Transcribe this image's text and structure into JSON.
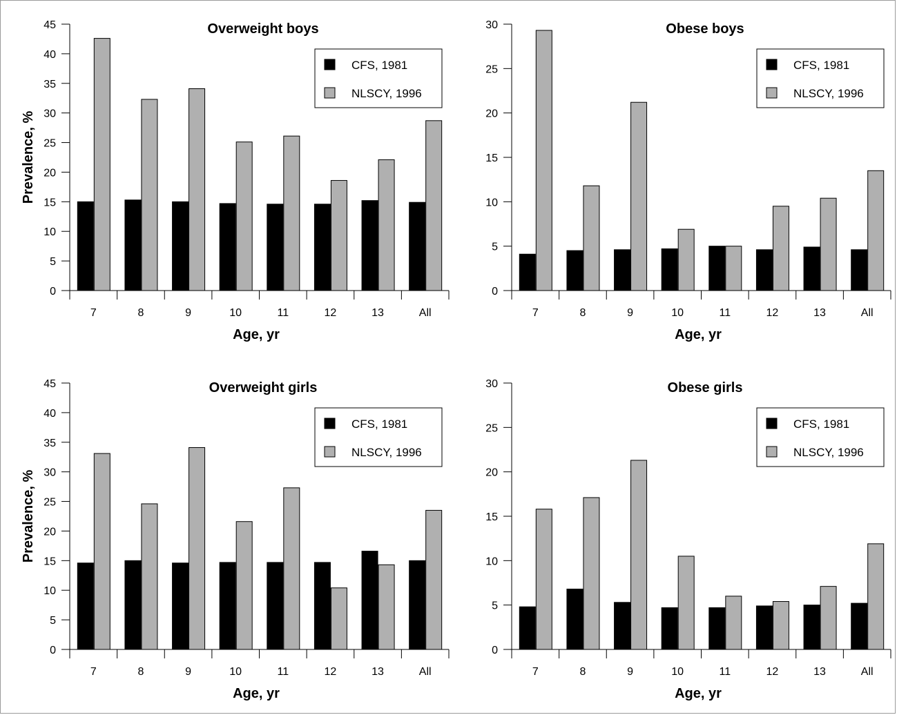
{
  "chart_data": [
    {
      "type": "bar",
      "title": "Overweight boys",
      "xlabel": "Age, yr",
      "ylabel": "Prevalence, %",
      "categories": [
        "7",
        "8",
        "9",
        "10",
        "11",
        "12",
        "13",
        "All"
      ],
      "ylim": [
        0,
        45
      ],
      "yticks": [
        "0",
        "5",
        "10",
        "15",
        "20",
        "25",
        "30",
        "35",
        "40",
        "45"
      ],
      "legend_position": "top-right",
      "series": [
        {
          "name": "CFS, 1981",
          "color": "#000000",
          "values": [
            15.0,
            15.3,
            15.0,
            14.7,
            14.6,
            14.6,
            15.2,
            14.9
          ]
        },
        {
          "name": "NLSCY, 1996",
          "color": "#b0b0b0",
          "values": [
            42.6,
            32.3,
            34.1,
            25.1,
            26.1,
            18.6,
            22.1,
            28.7
          ]
        }
      ]
    },
    {
      "type": "bar",
      "title": "Obese boys",
      "xlabel": "Age, yr",
      "ylabel": "",
      "categories": [
        "7",
        "8",
        "9",
        "10",
        "11",
        "12",
        "13",
        "All"
      ],
      "ylim": [
        0,
        30
      ],
      "yticks": [
        "0",
        "5",
        "10",
        "15",
        "20",
        "25",
        "30"
      ],
      "legend_position": "top-right",
      "series": [
        {
          "name": "CFS, 1981",
          "color": "#000000",
          "values": [
            4.1,
            4.5,
            4.6,
            4.7,
            5.0,
            4.6,
            4.9,
            4.6
          ]
        },
        {
          "name": "NLSCY, 1996",
          "color": "#b0b0b0",
          "values": [
            29.3,
            11.8,
            21.2,
            6.9,
            5.0,
            9.5,
            10.4,
            13.5
          ]
        }
      ]
    },
    {
      "type": "bar",
      "title": "Overweight girls",
      "xlabel": "Age, yr",
      "ylabel": "Prevalence, %",
      "categories": [
        "7",
        "8",
        "9",
        "10",
        "11",
        "12",
        "13",
        "All"
      ],
      "ylim": [
        0,
        45
      ],
      "yticks": [
        "0",
        "5",
        "10",
        "15",
        "20",
        "25",
        "30",
        "35",
        "40",
        "45"
      ],
      "legend_position": "top-right",
      "series": [
        {
          "name": "CFS, 1981",
          "color": "#000000",
          "values": [
            14.6,
            15.0,
            14.6,
            14.7,
            14.7,
            14.7,
            16.6,
            15.0
          ]
        },
        {
          "name": "NLSCY, 1996",
          "color": "#b0b0b0",
          "values": [
            33.1,
            24.6,
            34.1,
            21.6,
            27.3,
            10.4,
            14.3,
            23.5
          ]
        }
      ]
    },
    {
      "type": "bar",
      "title": "Obese girls",
      "xlabel": "Age, yr",
      "ylabel": "",
      "categories": [
        "7",
        "8",
        "9",
        "10",
        "11",
        "12",
        "13",
        "All"
      ],
      "ylim": [
        0,
        30
      ],
      "yticks": [
        "0",
        "5",
        "10",
        "15",
        "20",
        "25",
        "30"
      ],
      "legend_position": "top-right",
      "series": [
        {
          "name": "CFS, 1981",
          "color": "#000000",
          "values": [
            4.8,
            6.8,
            5.3,
            4.7,
            4.7,
            4.9,
            5.0,
            5.2
          ]
        },
        {
          "name": "NLSCY, 1996",
          "color": "#b0b0b0",
          "values": [
            15.8,
            17.1,
            21.3,
            10.5,
            6.0,
            5.4,
            7.1,
            11.9
          ]
        }
      ]
    }
  ]
}
